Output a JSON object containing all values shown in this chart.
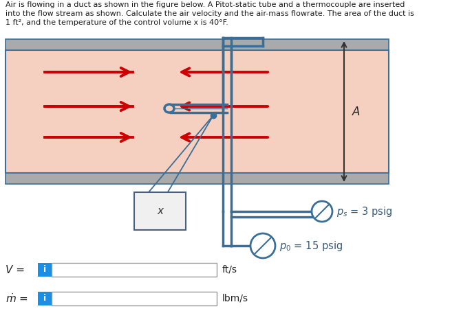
{
  "bg_color": "#ffffff",
  "duct_fill": "#f5d0c0",
  "duct_border": "#3a6e96",
  "duct_wall_color": "#aaaaaa",
  "arrow_color": "#cc0000",
  "tube_color": "#3a6e96",
  "text_color": "#3a5a78",
  "title_line1": "Air is flowing in a duct as shown in the figure below. A Pitot-static tube and a thermocouple are inserted",
  "title_line2": "into the flow stream as shown. Calculate the air velocity and the air-mass flowrate. The area of the duct is",
  "title_line3": "1 ft², and the temperature of the control volume x is 40°F.",
  "ps_label": "$p_s$ = 3 psig",
  "po_label": "$p_0$ = 15 psig",
  "A_label": "A",
  "x_label": "x",
  "V_label": "V =",
  "mdot_label": "$\\dot{m}$ =",
  "ft_s_label": "ft/s",
  "lbm_s_label": "lbm/s",
  "info_bg": "#1a8fe3",
  "info_text": "i"
}
